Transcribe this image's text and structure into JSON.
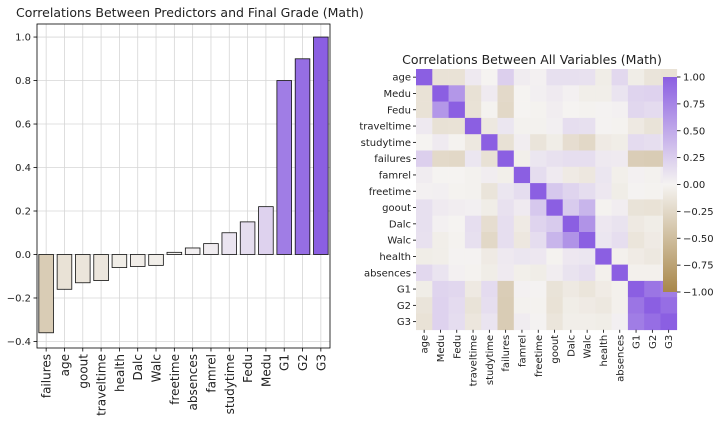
{
  "chart_data": [
    {
      "type": "bar",
      "title": "Correlations Between Predictors and Final Grade (Math)",
      "xlabel": "",
      "ylabel": "",
      "categories": [
        "failures",
        "age",
        "goout",
        "traveltime",
        "health",
        "Dalc",
        "Walc",
        "freetime",
        "absences",
        "famrel",
        "studytime",
        "Fedu",
        "Medu",
        "G1",
        "G2",
        "G3"
      ],
      "values": [
        -0.36,
        -0.16,
        -0.13,
        -0.12,
        -0.06,
        -0.055,
        -0.05,
        0.01,
        0.03,
        0.05,
        0.1,
        0.15,
        0.22,
        0.8,
        0.9,
        1.0
      ],
      "ylim": [
        -0.43,
        1.06
      ],
      "yticks": [
        -0.4,
        -0.2,
        0.0,
        0.2,
        0.4,
        0.6,
        0.8,
        1.0
      ],
      "ytick_labels": [
        "−0.4",
        "−0.2",
        "0.0",
        "0.2",
        "0.4",
        "0.6",
        "0.8",
        "1.0"
      ],
      "grid": true,
      "colormap": {
        "negative": "#a8874a",
        "neutral": "#f5f3f1",
        "positive": "#8b5fe2",
        "vmin": -1,
        "vmax": 1
      }
    },
    {
      "type": "heatmap",
      "title": "Correlations Between All Variables (Math)",
      "labels": [
        "age",
        "Medu",
        "Fedu",
        "traveltime",
        "studytime",
        "failures",
        "famrel",
        "freetime",
        "goout",
        "Dalc",
        "Walc",
        "health",
        "absences",
        "G1",
        "G2",
        "G3"
      ],
      "matrix": [
        [
          1.0,
          -0.16,
          -0.16,
          0.07,
          0.0,
          0.24,
          0.05,
          0.02,
          0.13,
          0.13,
          0.12,
          -0.06,
          0.18,
          -0.06,
          -0.14,
          -0.16
        ],
        [
          -0.16,
          1.0,
          0.62,
          -0.17,
          0.06,
          -0.24,
          -0.0,
          0.03,
          0.06,
          0.02,
          -0.05,
          -0.05,
          0.1,
          0.21,
          0.22,
          0.22
        ],
        [
          -0.16,
          0.62,
          1.0,
          -0.16,
          -0.01,
          -0.25,
          -0.0,
          -0.01,
          0.04,
          0.0,
          -0.01,
          0.01,
          0.02,
          0.19,
          0.16,
          0.15
        ],
        [
          0.07,
          -0.17,
          -0.16,
          1.0,
          -0.1,
          0.09,
          -0.02,
          -0.02,
          0.03,
          0.14,
          0.13,
          0.01,
          -0.01,
          -0.09,
          -0.15,
          -0.12
        ],
        [
          0.0,
          0.06,
          -0.01,
          -0.1,
          1.0,
          -0.17,
          0.04,
          -0.14,
          -0.06,
          -0.2,
          -0.25,
          -0.08,
          -0.06,
          0.16,
          0.14,
          0.1
        ],
        [
          0.24,
          -0.24,
          -0.25,
          0.09,
          -0.17,
          1.0,
          -0.04,
          0.09,
          0.12,
          0.14,
          0.14,
          0.07,
          0.06,
          -0.35,
          -0.36,
          -0.36
        ],
        [
          0.05,
          -0.0,
          -0.0,
          -0.02,
          0.04,
          -0.04,
          1.0,
          0.15,
          0.06,
          -0.08,
          -0.11,
          0.09,
          -0.04,
          0.02,
          -0.02,
          0.05
        ],
        [
          0.02,
          0.03,
          -0.01,
          -0.02,
          -0.14,
          0.09,
          0.15,
          1.0,
          0.29,
          0.21,
          0.15,
          0.08,
          -0.06,
          0.01,
          -0.01,
          0.01
        ],
        [
          0.13,
          0.06,
          0.04,
          0.03,
          -0.06,
          0.12,
          0.06,
          0.29,
          1.0,
          0.27,
          0.42,
          -0.01,
          0.04,
          -0.15,
          -0.16,
          -0.13
        ],
        [
          0.13,
          0.02,
          0.0,
          0.14,
          -0.2,
          0.14,
          -0.08,
          0.21,
          0.27,
          1.0,
          0.65,
          0.08,
          0.11,
          -0.09,
          -0.06,
          -0.05
        ],
        [
          0.12,
          -0.05,
          -0.01,
          0.13,
          -0.25,
          0.14,
          -0.11,
          0.15,
          0.42,
          0.65,
          1.0,
          0.09,
          0.14,
          -0.13,
          -0.08,
          -0.05
        ],
        [
          -0.06,
          -0.05,
          0.01,
          0.01,
          -0.08,
          0.07,
          0.09,
          0.08,
          -0.01,
          0.08,
          0.09,
          1.0,
          -0.03,
          -0.07,
          -0.1,
          -0.06
        ],
        [
          0.18,
          0.1,
          0.02,
          -0.01,
          -0.06,
          0.06,
          -0.04,
          -0.06,
          0.04,
          0.11,
          0.14,
          -0.03,
          1.0,
          -0.03,
          -0.03,
          0.03
        ],
        [
          -0.06,
          0.21,
          0.19,
          -0.09,
          0.16,
          -0.35,
          0.02,
          0.01,
          -0.15,
          -0.09,
          -0.13,
          -0.07,
          -0.03,
          1.0,
          0.85,
          0.8
        ],
        [
          -0.14,
          0.22,
          0.16,
          -0.15,
          0.14,
          -0.36,
          -0.02,
          -0.01,
          -0.16,
          -0.06,
          -0.08,
          -0.1,
          -0.03,
          0.85,
          1.0,
          0.9
        ],
        [
          -0.16,
          0.22,
          0.15,
          -0.12,
          0.1,
          -0.36,
          0.05,
          0.01,
          -0.13,
          -0.05,
          -0.05,
          -0.06,
          0.03,
          0.8,
          0.9,
          1.0
        ]
      ],
      "colorbar_ticks": [
        1.0,
        0.75,
        0.5,
        0.25,
        0.0,
        -0.25,
        -0.5,
        -0.75,
        -1.0
      ],
      "colorbar_tick_labels": [
        "1.00",
        "0.75",
        "0.50",
        "0.25",
        "0.00",
        "−0.25",
        "−0.50",
        "−0.75",
        "−1.00"
      ],
      "vmin": -1,
      "vmax": 1,
      "colormap": {
        "negative": "#a8874a",
        "neutral": "#f5f3f1",
        "positive": "#8b5fe2"
      }
    }
  ]
}
